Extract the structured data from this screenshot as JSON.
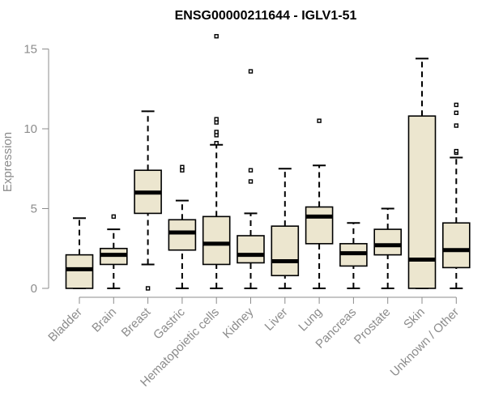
{
  "chart_data": {
    "type": "boxplot",
    "title": "ENSG00000211644 - IGLV1-51",
    "xlabel": "",
    "ylabel": "Expression",
    "ylim": [
      0,
      15.5
    ],
    "yticks": [
      0,
      5,
      10,
      15
    ],
    "box_color": "#ece6cf",
    "categories": [
      "Bladder",
      "Brain",
      "Breast",
      "Gastric",
      "Hematopoietic cells",
      "Kidney",
      "Liver",
      "Lung",
      "Pancreas",
      "Prostate",
      "Skin",
      "Unknown / Other"
    ],
    "boxes": [
      {
        "category": "Bladder",
        "min": 0,
        "q1": 0,
        "median": 1.2,
        "q3": 2.1,
        "max": 4.4,
        "outliers": []
      },
      {
        "category": "Brain",
        "min": 0,
        "q1": 1.5,
        "median": 2.1,
        "q3": 2.5,
        "max": 3.7,
        "outliers": [
          4.5
        ]
      },
      {
        "category": "Breast",
        "min": 1.5,
        "q1": 4.7,
        "median": 6.0,
        "q3": 7.4,
        "max": 11.1,
        "outliers": [
          0
        ]
      },
      {
        "category": "Gastric",
        "min": 0,
        "q1": 2.4,
        "median": 3.5,
        "q3": 4.3,
        "max": 5.5,
        "outliers": [
          7.4,
          7.6
        ]
      },
      {
        "category": "Hematopoietic cells",
        "min": 0,
        "q1": 1.5,
        "median": 2.8,
        "q3": 4.5,
        "max": 9.0,
        "outliers": [
          9.1,
          9.6,
          9.8,
          10.4,
          10.6,
          15.8
        ]
      },
      {
        "category": "Kidney",
        "min": 0,
        "q1": 1.6,
        "median": 2.1,
        "q3": 3.3,
        "max": 4.7,
        "outliers": [
          6.7,
          7.4,
          13.6
        ]
      },
      {
        "category": "Liver",
        "min": 0,
        "q1": 0.8,
        "median": 1.7,
        "q3": 3.9,
        "max": 7.5,
        "outliers": []
      },
      {
        "category": "Lung",
        "min": 0,
        "q1": 2.8,
        "median": 4.5,
        "q3": 5.1,
        "max": 7.7,
        "outliers": [
          10.5
        ]
      },
      {
        "category": "Pancreas",
        "min": 0,
        "q1": 1.4,
        "median": 2.2,
        "q3": 2.8,
        "max": 4.1,
        "outliers": []
      },
      {
        "category": "Prostate",
        "min": 0,
        "q1": 2.1,
        "median": 2.7,
        "q3": 3.7,
        "max": 5.0,
        "outliers": []
      },
      {
        "category": "Skin",
        "min": 0,
        "q1": 0,
        "median": 1.8,
        "q3": 10.8,
        "max": 14.4,
        "outliers": []
      },
      {
        "category": "Unknown / Other",
        "min": 0,
        "q1": 1.3,
        "median": 2.4,
        "q3": 4.1,
        "max": 8.2,
        "outliers": [
          8.5,
          8.6,
          10.2,
          11.0,
          11.5
        ]
      }
    ]
  }
}
